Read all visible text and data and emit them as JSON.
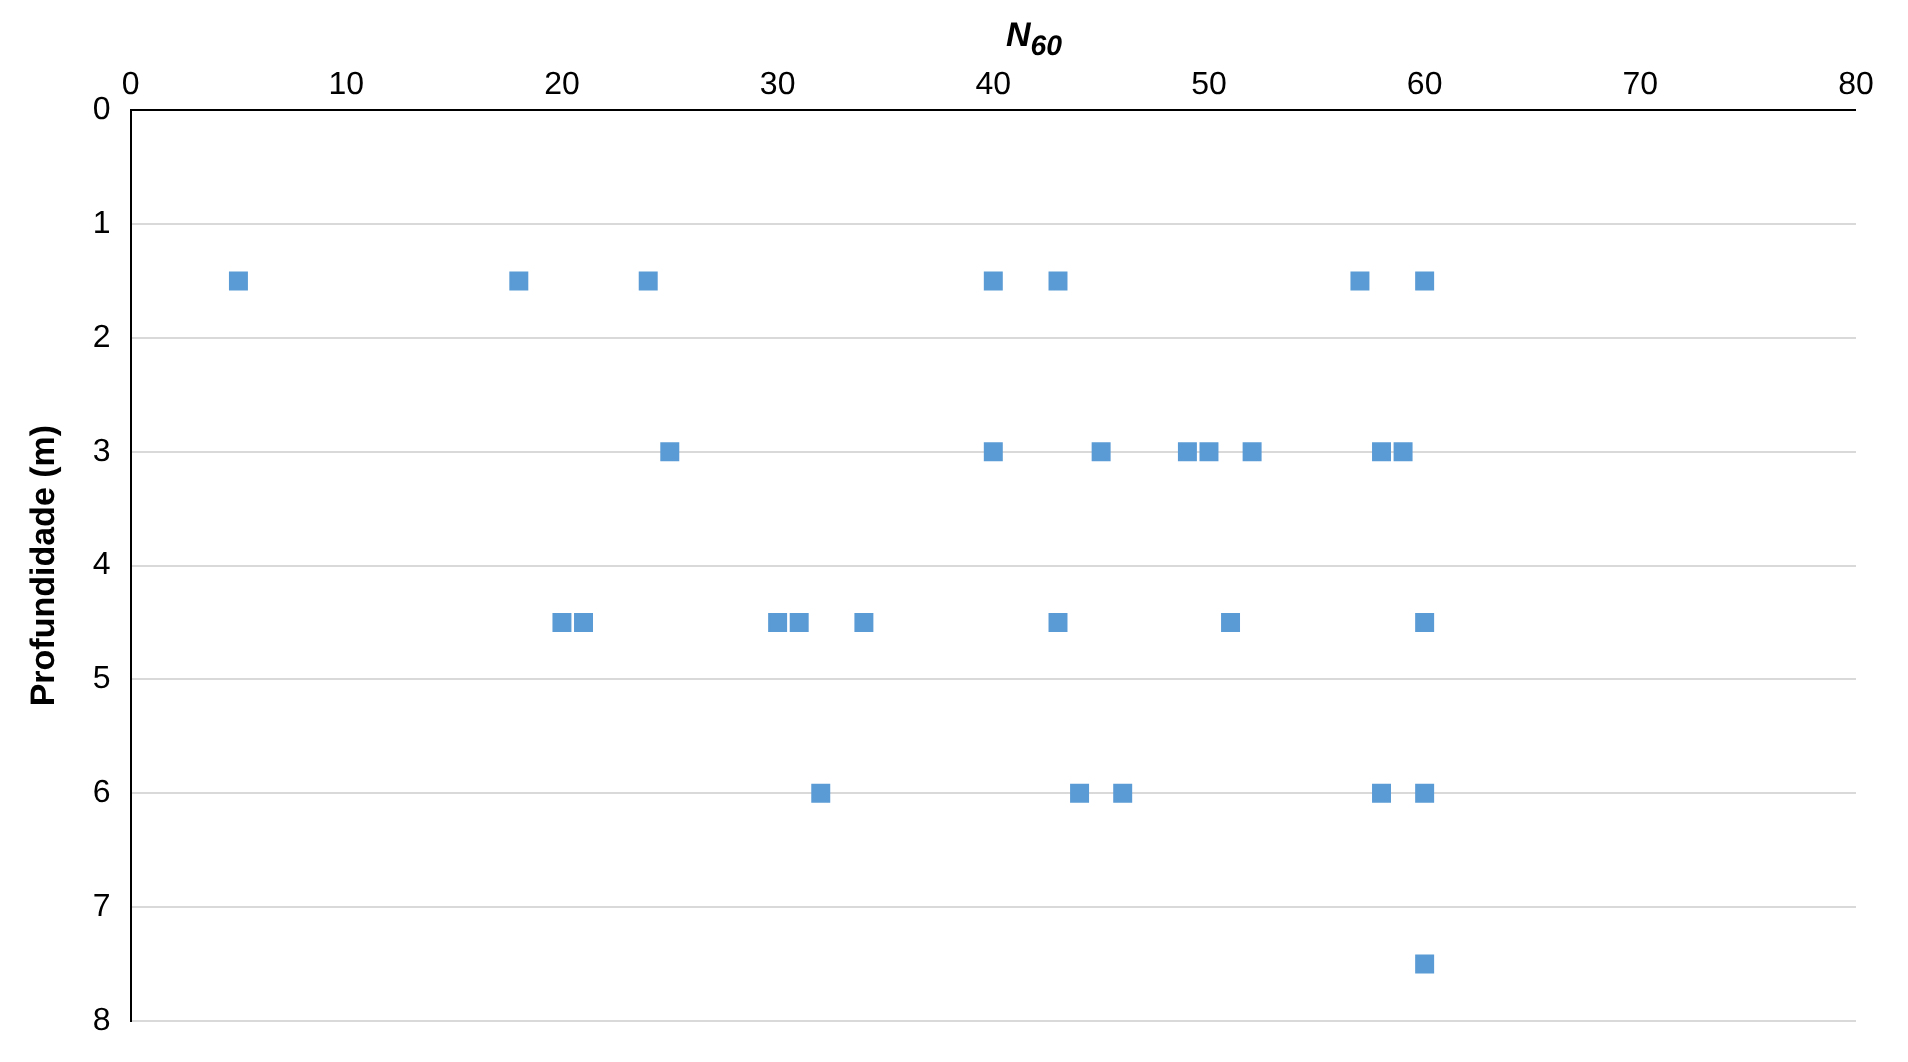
{
  "chart_data": {
    "type": "scatter",
    "xlabel": "N$_{60}$",
    "ylabel": "Profundidade (m)",
    "x": [
      5,
      18,
      24,
      40,
      43,
      57,
      60,
      25,
      40,
      45,
      49,
      50,
      52,
      58,
      59,
      20,
      21,
      30,
      31,
      34,
      43,
      51,
      60,
      32,
      44,
      46,
      58,
      60,
      60
    ],
    "values": [
      1.5,
      1.5,
      1.5,
      1.5,
      1.5,
      1.5,
      1.5,
      3,
      3,
      3,
      3,
      3,
      3,
      3,
      3,
      4.5,
      4.5,
      4.5,
      4.5,
      4.5,
      4.5,
      4.5,
      4.5,
      6,
      6,
      6,
      6,
      6,
      7.5
    ],
    "color": "#5b9bd5",
    "marker": "square",
    "xlim": [
      0,
      80
    ],
    "xticks": [
      0,
      10,
      20,
      30,
      40,
      50,
      60,
      70,
      80
    ],
    "ylim": [
      8,
      0
    ],
    "yticks": [
      0,
      1,
      2,
      3,
      4,
      5,
      6,
      7,
      8
    ],
    "grid": "y",
    "legend": false
  }
}
